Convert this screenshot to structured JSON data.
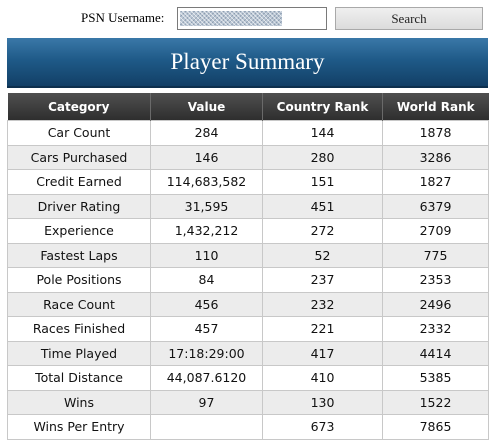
{
  "search": {
    "label": "PSN Username:",
    "input_value": "",
    "button_label": "Search"
  },
  "banner": {
    "title": "Player Summary"
  },
  "table": {
    "headers": [
      "Category",
      "Value",
      "Country Rank",
      "World Rank"
    ],
    "rows": [
      [
        "Car Count",
        "284",
        "144",
        "1878"
      ],
      [
        "Cars Purchased",
        "146",
        "280",
        "3286"
      ],
      [
        "Credit Earned",
        "114,683,582",
        "151",
        "1827"
      ],
      [
        "Driver Rating",
        "31,595",
        "451",
        "6379"
      ],
      [
        "Experience",
        "1,432,212",
        "272",
        "2709"
      ],
      [
        "Fastest Laps",
        "110",
        "52",
        "775"
      ],
      [
        "Pole Positions",
        "84",
        "237",
        "2353"
      ],
      [
        "Race Count",
        "456",
        "232",
        "2496"
      ],
      [
        "Races Finished",
        "457",
        "221",
        "2332"
      ],
      [
        "Time Played",
        "17:18:29:00",
        "417",
        "4414"
      ],
      [
        "Total Distance",
        "44,087.6120",
        "410",
        "5385"
      ],
      [
        "Wins",
        "97",
        "130",
        "1522"
      ],
      [
        "Wins Per Entry",
        "",
        "673",
        "7865"
      ]
    ]
  },
  "colors": {
    "banner_top": "#3a78a8",
    "banner_bottom": "#123f66",
    "header_bg": "#3a3a3a",
    "alt_row_bg": "#ececec"
  }
}
